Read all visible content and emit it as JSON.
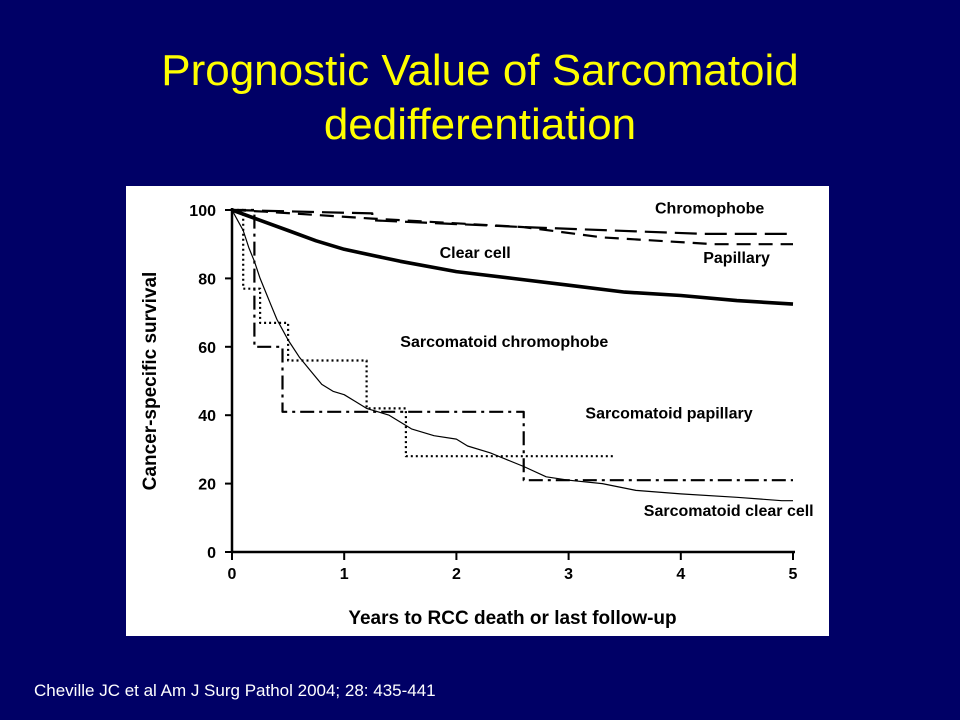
{
  "slide": {
    "title_line1": "Prognostic Value of Sarcomatoid",
    "title_line2": "dedifferentiation",
    "citation": "Cheville JC et al Am J Surg Pathol 2004; 28: 435-441"
  },
  "colors": {
    "background": "#000066",
    "title": "#ffff00",
    "citation": "#ffffff",
    "chart_background": "#ffffff",
    "ink": "#000000"
  },
  "chart_data": {
    "type": "line",
    "xlabel": "Years to RCC death or last follow-up",
    "ylabel": "Cancer-specific survival",
    "xlim": [
      0,
      5
    ],
    "ylim": [
      0,
      100
    ],
    "xticks": [
      0,
      1,
      2,
      3,
      4,
      5
    ],
    "yticks": [
      0,
      20,
      40,
      60,
      80,
      100
    ],
    "grid": false,
    "step": true,
    "series": [
      {
        "name": "Chromophobe",
        "style": "longdash",
        "weight": "medium",
        "points": [
          [
            0,
            100
          ],
          [
            1.25,
            99
          ],
          [
            1.25,
            97
          ],
          [
            2.6,
            95
          ],
          [
            4.2,
            93
          ],
          [
            5,
            93
          ]
        ]
      },
      {
        "name": "Papillary",
        "style": "dash",
        "weight": "medium",
        "points": [
          [
            0,
            100
          ],
          [
            0.3,
            99.5
          ],
          [
            1.25,
            97.5
          ],
          [
            2.6,
            95
          ],
          [
            3.3,
            92
          ],
          [
            4.3,
            90
          ],
          [
            5,
            90
          ]
        ]
      },
      {
        "name": "Clear cell",
        "style": "solid",
        "weight": "thick",
        "curve": true,
        "points": [
          [
            0,
            100
          ],
          [
            0.25,
            97
          ],
          [
            0.5,
            94
          ],
          [
            0.75,
            91
          ],
          [
            1,
            88.5
          ],
          [
            1.5,
            85
          ],
          [
            2,
            82
          ],
          [
            2.5,
            80
          ],
          [
            3,
            78
          ],
          [
            3.5,
            76
          ],
          [
            4,
            75
          ],
          [
            4.5,
            73.5
          ],
          [
            5,
            72.5
          ]
        ]
      },
      {
        "name": "Sarcomatoid chromophobe",
        "style": "dotted",
        "weight": "medium",
        "points": [
          [
            0,
            100
          ],
          [
            0.1,
            100
          ],
          [
            0.1,
            77
          ],
          [
            0.25,
            77
          ],
          [
            0.25,
            67
          ],
          [
            0.5,
            67
          ],
          [
            0.5,
            56
          ],
          [
            1.2,
            56
          ],
          [
            1.2,
            42
          ],
          [
            1.55,
            42
          ],
          [
            1.55,
            28
          ],
          [
            3.4,
            28
          ]
        ]
      },
      {
        "name": "Sarcomatoid papillary",
        "style": "dashdot",
        "weight": "medium",
        "points": [
          [
            0,
            100
          ],
          [
            0.2,
            100
          ],
          [
            0.2,
            60
          ],
          [
            0.45,
            60
          ],
          [
            0.45,
            41
          ],
          [
            2.6,
            41
          ],
          [
            2.6,
            21
          ],
          [
            5,
            21
          ]
        ]
      },
      {
        "name": "Sarcomatoid clear cell",
        "style": "solid",
        "weight": "thin",
        "points": [
          [
            0,
            100
          ],
          [
            0.05,
            97
          ],
          [
            0.1,
            94
          ],
          [
            0.15,
            89
          ],
          [
            0.2,
            85
          ],
          [
            0.25,
            80
          ],
          [
            0.3,
            76
          ],
          [
            0.35,
            72
          ],
          [
            0.4,
            68
          ],
          [
            0.45,
            65
          ],
          [
            0.5,
            62
          ],
          [
            0.6,
            57
          ],
          [
            0.7,
            53
          ],
          [
            0.8,
            49
          ],
          [
            0.9,
            47
          ],
          [
            1,
            46
          ],
          [
            1.1,
            44
          ],
          [
            1.2,
            42
          ],
          [
            1.4,
            40
          ],
          [
            1.6,
            36
          ],
          [
            1.8,
            34
          ],
          [
            2,
            33
          ],
          [
            2.1,
            31
          ],
          [
            2.3,
            29
          ],
          [
            2.45,
            27
          ],
          [
            2.6,
            25
          ],
          [
            2.8,
            22
          ],
          [
            3,
            21
          ],
          [
            3.3,
            20
          ],
          [
            3.6,
            18
          ],
          [
            4,
            17
          ],
          [
            4.5,
            16
          ],
          [
            4.9,
            15
          ],
          [
            5,
            15
          ]
        ]
      }
    ],
    "annotations": [
      {
        "text": "Chromophobe",
        "x": 3.77,
        "y": 99
      },
      {
        "text": "Clear cell",
        "x": 1.85,
        "y": 86
      },
      {
        "text": "Papillary",
        "x": 4.2,
        "y": 84.5
      },
      {
        "text": "Sarcomatoid chromophobe",
        "x": 1.5,
        "y": 60
      },
      {
        "text": "Sarcomatoid papillary",
        "x": 3.15,
        "y": 39
      },
      {
        "text": "Sarcomatoid clear cell",
        "x": 3.67,
        "y": 10.5
      }
    ]
  }
}
